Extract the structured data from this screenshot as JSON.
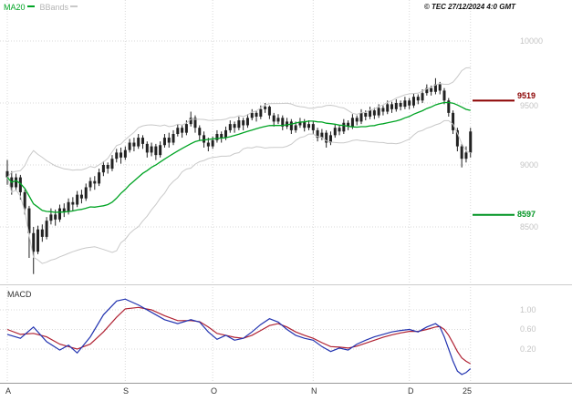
{
  "header": {
    "ma20_label": "MA20",
    "bbands_label": "BBands",
    "copyright": "© TEC 27/12/2024 4:0 GMT"
  },
  "colors": {
    "ma20": "#00a424",
    "bbands": "#c9c9c9",
    "candle": "#222222",
    "resistance": "#8b0000",
    "support": "#009422",
    "macd_line": "#2233b0",
    "macd_signal": "#b02233",
    "grid": "#d9d9d9",
    "tick_text": "#c4c4c4",
    "month_text": "#333333"
  },
  "y_axis": {
    "ticks": [
      {
        "label": "10000",
        "price": 10000
      },
      {
        "label": "9500",
        "price": 9500
      },
      {
        "label": "9000",
        "price": 9000
      },
      {
        "label": "8500",
        "price": 8500
      }
    ]
  },
  "levels": {
    "resistance": {
      "label": "9519",
      "price": 9519
    },
    "support": {
      "label": "8597",
      "price": 8597
    }
  },
  "macd_panel": {
    "label": "MACD",
    "ticks": [
      {
        "label": "1.00",
        "value": 1.0
      },
      {
        "label": "0.60",
        "value": 0.6
      },
      {
        "label": "0.20",
        "value": 0.2
      }
    ]
  },
  "x_axis": {
    "months": [
      {
        "label": "A",
        "index": 0
      },
      {
        "label": "S",
        "index": 27
      },
      {
        "label": "O",
        "index": 47
      },
      {
        "label": "N",
        "index": 70
      },
      {
        "label": "D",
        "index": 92
      },
      {
        "label": "25",
        "index": 106
      }
    ]
  },
  "chart_data": {
    "type": "candlestick",
    "title": "",
    "overlays": [
      "MA20",
      "BBands(20,2)"
    ],
    "price_ylim": [
      8050,
      10330
    ],
    "indicator_panel": {
      "type": "line",
      "name": "MACD",
      "ylim": [
        -0.47,
        1.45
      ]
    },
    "candles": [
      [
        8950,
        9040,
        8840,
        8900
      ],
      [
        8900,
        8950,
        8760,
        8820
      ],
      [
        8820,
        8930,
        8790,
        8900
      ],
      [
        8900,
        8920,
        8720,
        8780
      ],
      [
        8780,
        8800,
        8600,
        8650
      ],
      [
        8650,
        8670,
        8250,
        8450
      ],
      [
        8450,
        8500,
        8120,
        8300
      ],
      [
        8300,
        8510,
        8280,
        8480
      ],
      [
        8480,
        8520,
        8380,
        8420
      ],
      [
        8420,
        8580,
        8400,
        8550
      ],
      [
        8550,
        8650,
        8520,
        8600
      ],
      [
        8600,
        8640,
        8510,
        8560
      ],
      [
        8560,
        8680,
        8540,
        8650
      ],
      [
        8650,
        8690,
        8580,
        8620
      ],
      [
        8620,
        8730,
        8600,
        8700
      ],
      [
        8700,
        8740,
        8630,
        8680
      ],
      [
        8680,
        8790,
        8660,
        8760
      ],
      [
        8760,
        8800,
        8690,
        8730
      ],
      [
        8730,
        8850,
        8710,
        8820
      ],
      [
        8820,
        8900,
        8790,
        8870
      ],
      [
        8870,
        8910,
        8800,
        8850
      ],
      [
        8850,
        8970,
        8830,
        8940
      ],
      [
        8940,
        9030,
        8910,
        9000
      ],
      [
        9000,
        9020,
        8930,
        8970
      ],
      [
        8970,
        9080,
        8950,
        9050
      ],
      [
        9050,
        9130,
        9020,
        9100
      ],
      [
        9100,
        9140,
        9010,
        9060
      ],
      [
        9060,
        9150,
        9040,
        9120
      ],
      [
        9120,
        9210,
        9100,
        9180
      ],
      [
        9180,
        9220,
        9110,
        9150
      ],
      [
        9150,
        9250,
        9130,
        9220
      ],
      [
        9220,
        9240,
        9130,
        9170
      ],
      [
        9170,
        9190,
        9060,
        9100
      ],
      [
        9100,
        9180,
        9070,
        9150
      ],
      [
        9150,
        9170,
        9040,
        9080
      ],
      [
        9080,
        9190,
        9060,
        9160
      ],
      [
        9160,
        9250,
        9140,
        9220
      ],
      [
        9220,
        9260,
        9140,
        9180
      ],
      [
        9180,
        9280,
        9160,
        9250
      ],
      [
        9250,
        9330,
        9230,
        9300
      ],
      [
        9300,
        9320,
        9220,
        9260
      ],
      [
        9260,
        9360,
        9240,
        9330
      ],
      [
        9330,
        9430,
        9310,
        9380
      ],
      [
        9380,
        9400,
        9260,
        9300
      ],
      [
        9300,
        9320,
        9200,
        9240
      ],
      [
        9240,
        9270,
        9140,
        9180
      ],
      [
        9180,
        9220,
        9110,
        9150
      ],
      [
        9150,
        9230,
        9130,
        9200
      ],
      [
        9200,
        9280,
        9180,
        9250
      ],
      [
        9250,
        9270,
        9180,
        9220
      ],
      [
        9220,
        9310,
        9200,
        9280
      ],
      [
        9280,
        9360,
        9260,
        9330
      ],
      [
        9330,
        9350,
        9260,
        9300
      ],
      [
        9300,
        9390,
        9280,
        9360
      ],
      [
        9360,
        9380,
        9280,
        9320
      ],
      [
        9320,
        9410,
        9300,
        9380
      ],
      [
        9380,
        9450,
        9360,
        9420
      ],
      [
        9420,
        9440,
        9350,
        9390
      ],
      [
        9390,
        9480,
        9370,
        9450
      ],
      [
        9450,
        9500,
        9420,
        9470
      ],
      [
        9470,
        9480,
        9370,
        9400
      ],
      [
        9400,
        9420,
        9310,
        9350
      ],
      [
        9350,
        9410,
        9330,
        9380
      ],
      [
        9380,
        9400,
        9280,
        9310
      ],
      [
        9310,
        9380,
        9290,
        9350
      ],
      [
        9350,
        9370,
        9250,
        9280
      ],
      [
        9280,
        9350,
        9260,
        9320
      ],
      [
        9320,
        9380,
        9300,
        9350
      ],
      [
        9350,
        9370,
        9270,
        9300
      ],
      [
        9300,
        9360,
        9280,
        9330
      ],
      [
        9330,
        9350,
        9250,
        9280
      ],
      [
        9280,
        9300,
        9190,
        9220
      ],
      [
        9220,
        9290,
        9200,
        9260
      ],
      [
        9260,
        9280,
        9140,
        9180
      ],
      [
        9180,
        9270,
        9160,
        9240
      ],
      [
        9240,
        9330,
        9220,
        9300
      ],
      [
        9300,
        9320,
        9240,
        9270
      ],
      [
        9270,
        9370,
        9250,
        9340
      ],
      [
        9340,
        9360,
        9280,
        9310
      ],
      [
        9310,
        9410,
        9290,
        9380
      ],
      [
        9380,
        9400,
        9320,
        9350
      ],
      [
        9350,
        9450,
        9330,
        9420
      ],
      [
        9420,
        9440,
        9360,
        9390
      ],
      [
        9390,
        9470,
        9370,
        9440
      ],
      [
        9440,
        9460,
        9370,
        9400
      ],
      [
        9400,
        9490,
        9380,
        9460
      ],
      [
        9460,
        9480,
        9400,
        9430
      ],
      [
        9430,
        9520,
        9410,
        9490
      ],
      [
        9490,
        9510,
        9420,
        9450
      ],
      [
        9450,
        9530,
        9430,
        9500
      ],
      [
        9500,
        9520,
        9440,
        9470
      ],
      [
        9470,
        9550,
        9450,
        9520
      ],
      [
        9520,
        9540,
        9450,
        9480
      ],
      [
        9480,
        9580,
        9460,
        9550
      ],
      [
        9550,
        9570,
        9490,
        9520
      ],
      [
        9520,
        9610,
        9500,
        9580
      ],
      [
        9580,
        9650,
        9560,
        9620
      ],
      [
        9620,
        9640,
        9560,
        9590
      ],
      [
        9590,
        9700,
        9570,
        9650
      ],
      [
        9650,
        9670,
        9570,
        9600
      ],
      [
        9600,
        9620,
        9490,
        9520
      ],
      [
        9520,
        9540,
        9390,
        9420
      ],
      [
        9420,
        9440,
        9250,
        9280
      ],
      [
        9280,
        9300,
        9110,
        9150
      ],
      [
        9150,
        9170,
        8980,
        9050
      ],
      [
        9050,
        9150,
        9020,
        9100
      ],
      [
        9100,
        9300,
        9060,
        9270
      ]
    ],
    "macd": {
      "index": [
        0,
        3,
        6,
        9,
        12,
        14,
        16,
        19,
        22,
        25,
        27,
        30,
        33,
        36,
        39,
        42,
        44,
        46,
        48,
        50,
        52,
        54,
        56,
        58,
        60,
        62,
        64,
        66,
        68,
        70,
        72,
        74,
        76,
        78,
        80,
        82,
        84,
        86,
        88,
        90,
        92,
        94,
        96,
        98,
        99,
        100,
        101,
        102,
        103,
        104,
        105,
        106
      ],
      "macd": [
        0.5,
        0.42,
        0.65,
        0.35,
        0.18,
        0.28,
        0.12,
        0.45,
        0.9,
        1.18,
        1.22,
        1.1,
        0.95,
        0.8,
        0.72,
        0.8,
        0.75,
        0.55,
        0.4,
        0.48,
        0.38,
        0.42,
        0.55,
        0.7,
        0.82,
        0.75,
        0.6,
        0.48,
        0.42,
        0.38,
        0.25,
        0.15,
        0.22,
        0.18,
        0.3,
        0.38,
        0.45,
        0.5,
        0.55,
        0.58,
        0.6,
        0.55,
        0.65,
        0.72,
        0.65,
        0.45,
        0.2,
        -0.05,
        -0.25,
        -0.32,
        -0.28,
        -0.2
      ],
      "signal": [
        0.6,
        0.5,
        0.52,
        0.45,
        0.3,
        0.25,
        0.2,
        0.3,
        0.55,
        0.85,
        1.02,
        1.05,
        1.0,
        0.88,
        0.78,
        0.78,
        0.76,
        0.65,
        0.52,
        0.48,
        0.44,
        0.42,
        0.48,
        0.58,
        0.68,
        0.72,
        0.65,
        0.55,
        0.48,
        0.42,
        0.33,
        0.25,
        0.24,
        0.22,
        0.26,
        0.32,
        0.38,
        0.44,
        0.49,
        0.53,
        0.56,
        0.56,
        0.6,
        0.65,
        0.66,
        0.6,
        0.48,
        0.32,
        0.15,
        0.02,
        -0.05,
        -0.1
      ]
    }
  }
}
